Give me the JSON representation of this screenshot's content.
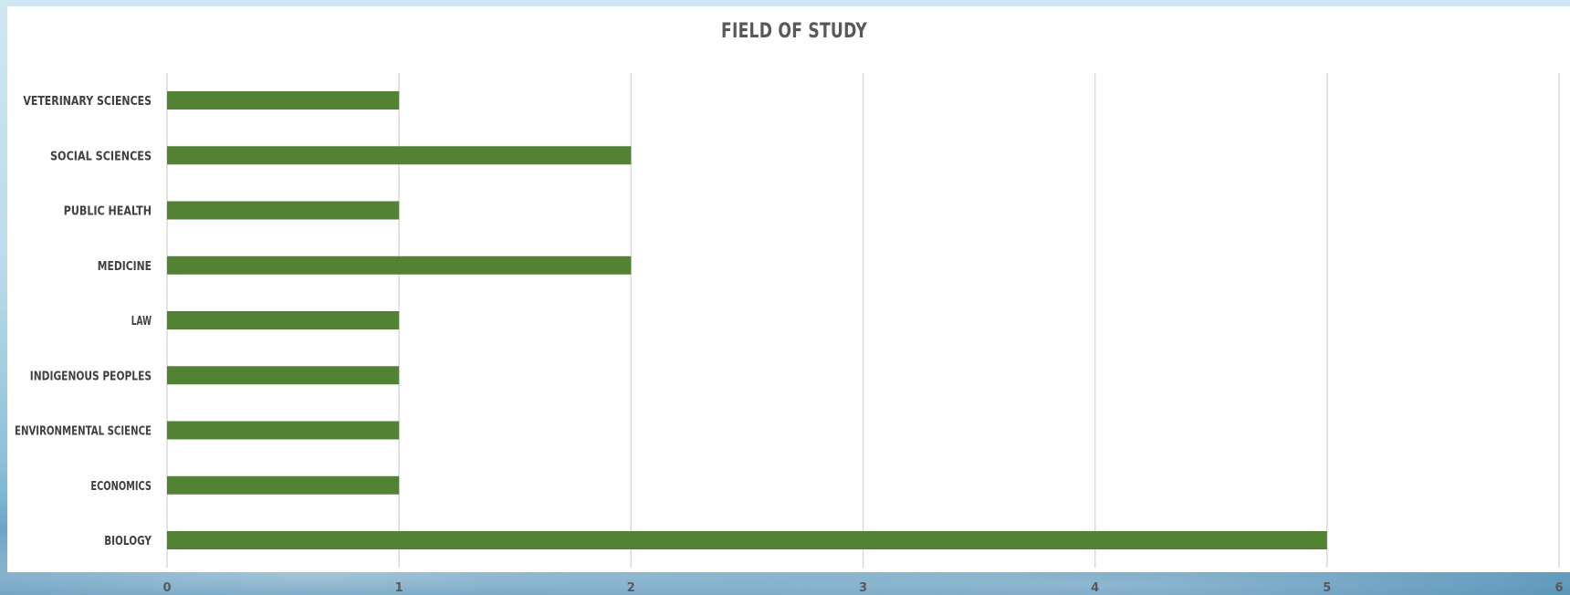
{
  "chart_data": {
    "type": "bar",
    "orientation": "horizontal",
    "title": "FIELD OF STUDY",
    "categories": [
      "VETERINARY SCIENCES",
      "SOCIAL SCIENCES",
      "PUBLIC HEALTH",
      "MEDICINE",
      "LAW",
      "INDIGENOUS PEOPLES",
      "ENVIRONMENTAL SCIENCE",
      "ECONOMICS",
      "BIOLOGY"
    ],
    "values": [
      1,
      2,
      1,
      2,
      1,
      1,
      1,
      1,
      5
    ],
    "xlim": [
      0,
      6
    ],
    "x_ticks": [
      "0",
      "1",
      "2",
      "3",
      "4",
      "5",
      "6"
    ],
    "xlabel": "",
    "ylabel": "",
    "grid": true,
    "legend": "none",
    "bar_color": "#548235",
    "grid_color": "#d9d9d9"
  }
}
